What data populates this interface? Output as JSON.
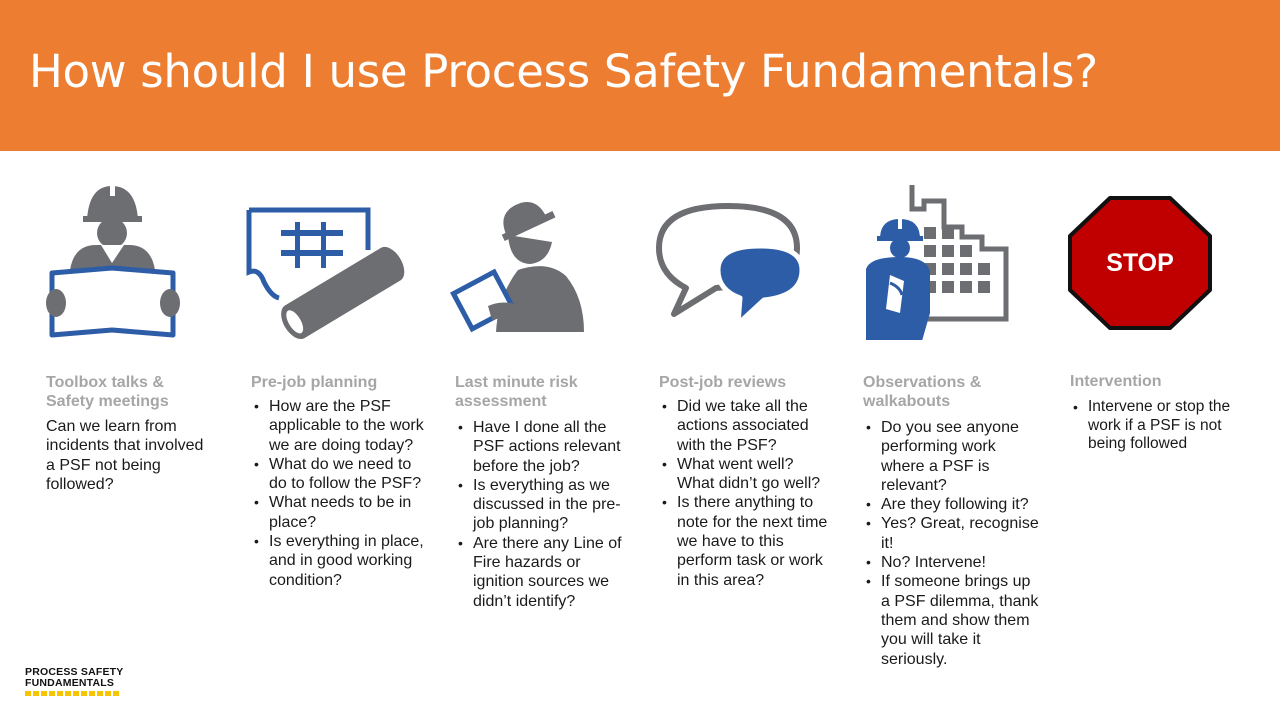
{
  "slide": {
    "title": "How should I use Process Safety Fundamentals?",
    "colors": {
      "banner": "#ED7D31",
      "blue": "#2E5DA8",
      "grey": "#6D6E71",
      "stop": "#C00000"
    }
  },
  "columns": [
    {
      "icon": "worker-reading-plan-icon",
      "title": "Toolbox talks & Safety meetings",
      "text": "Can we learn from incidents that involved a PSF not being followed?"
    },
    {
      "icon": "blueprint-pipe-icon",
      "title": "Pre-job planning",
      "bullets": [
        "How are the PSF applicable to the work we are doing today?",
        "What do we need to do to follow the PSF?",
        "What needs to be in place?",
        "Is everything in place, and in good working condition?"
      ]
    },
    {
      "icon": "worker-clipboard-icon",
      "title": "Last minute risk assessment",
      "bullets": [
        "Have I done all the PSF actions relevant before the job?",
        "Is everything as we discussed in the pre-job planning?",
        "Are there any Line of Fire hazards or ignition sources we didn’t identify?"
      ]
    },
    {
      "icon": "speech-bubbles-icon",
      "title": "Post-job reviews",
      "bullets": [
        "Did we take all the actions associated with the PSF?",
        "What went well? What didn’t go well?",
        "Is there anything to note for the next time we have to this perform task or work in this area?"
      ]
    },
    {
      "icon": "worker-building-icon",
      "title": "Observations & walkabouts",
      "bullets": [
        "Do you see anyone performing work where a PSF is relevant?",
        "Are they following it?",
        "Yes? Great, recognise it!",
        "No? Intervene!",
        "If someone brings up a PSF dilemma, thank them and show them you will take it seriously."
      ]
    },
    {
      "icon": "stop-sign-icon",
      "stop_label": "STOP",
      "title": "Intervention",
      "bullets": [
        "Intervene or stop the work if a PSF is not being followed"
      ]
    }
  ],
  "logo": {
    "line1": "PROCESS SAFETY",
    "line2": "FUNDAMENTALS"
  }
}
